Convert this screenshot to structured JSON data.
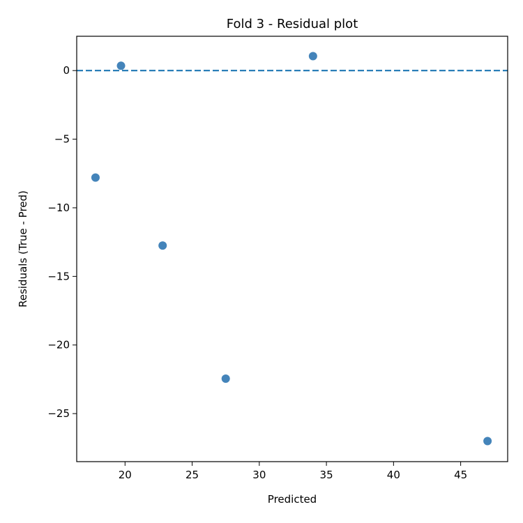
{
  "chart_data": {
    "type": "scatter",
    "title": "Fold 3 - Residual plot",
    "xlabel": "Predicted",
    "ylabel": "Residuals (True - Pred)",
    "xlim": [
      16.4,
      48.5
    ],
    "ylim": [
      -28.5,
      2.5
    ],
    "xticks": [
      20,
      25,
      30,
      35,
      40,
      45
    ],
    "yticks": [
      0,
      -5,
      -10,
      -15,
      -20,
      -25
    ],
    "xtick_labels": [
      "20",
      "25",
      "30",
      "35",
      "40",
      "45"
    ],
    "ytick_labels": [
      "0",
      "−5",
      "−10",
      "−15",
      "−20",
      "−25"
    ],
    "points": [
      {
        "x": 17.8,
        "y": -7.8
      },
      {
        "x": 19.7,
        "y": 0.35
      },
      {
        "x": 22.8,
        "y": -12.75
      },
      {
        "x": 27.5,
        "y": -22.45
      },
      {
        "x": 34.0,
        "y": 1.05
      },
      {
        "x": 47.0,
        "y": -27.0
      }
    ],
    "reference_line": {
      "y": 0,
      "style": "dashed"
    },
    "grid": false,
    "point_color": "#3a7db6",
    "line_color": "#1f77b4"
  }
}
